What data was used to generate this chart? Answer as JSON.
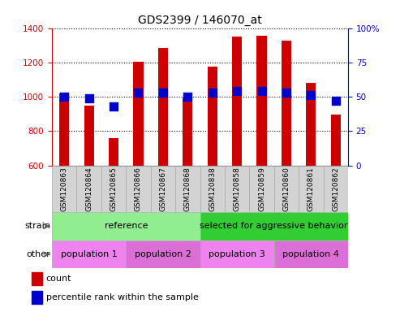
{
  "title": "GDS2399 / 146070_at",
  "samples": [
    "GSM120863",
    "GSM120864",
    "GSM120865",
    "GSM120866",
    "GSM120867",
    "GSM120868",
    "GSM120838",
    "GSM120858",
    "GSM120859",
    "GSM120860",
    "GSM120861",
    "GSM120862"
  ],
  "counts": [
    1020,
    950,
    760,
    1205,
    1285,
    995,
    1175,
    1350,
    1355,
    1325,
    1080,
    895
  ],
  "percentile_ranks": [
    50,
    49,
    43,
    53,
    53,
    50,
    53,
    54,
    54,
    53,
    51,
    47
  ],
  "count_color": "#cc0000",
  "percentile_color": "#0000cc",
  "ylim_left": [
    600,
    1400
  ],
  "ylim_right": [
    0,
    100
  ],
  "yticks_left": [
    600,
    800,
    1000,
    1200,
    1400
  ],
  "yticks_right": [
    0,
    25,
    50,
    75,
    100
  ],
  "strain_groups": [
    {
      "label": "reference",
      "start": 0,
      "end": 6,
      "color": "#90ee90"
    },
    {
      "label": "selected for aggressive behavior",
      "start": 6,
      "end": 12,
      "color": "#32cd32"
    }
  ],
  "population_groups": [
    {
      "label": "population 1",
      "start": 0,
      "end": 3,
      "color": "#ee82ee"
    },
    {
      "label": "population 2",
      "start": 3,
      "end": 6,
      "color": "#da70d6"
    },
    {
      "label": "population 3",
      "start": 6,
      "end": 9,
      "color": "#ee82ee"
    },
    {
      "label": "population 4",
      "start": 9,
      "end": 12,
      "color": "#da70d6"
    }
  ],
  "bar_width": 0.4,
  "dot_size": 55,
  "xlabel_fontsize": 6.5,
  "title_fontsize": 10,
  "tick_fontsize": 7.5,
  "label_fontsize": 8,
  "legend_fontsize": 8,
  "strain_label": "strain",
  "other_label": "other",
  "legend_count": "count",
  "legend_percentile": "percentile rank within the sample",
  "xticklabel_bg": "#d3d3d3"
}
